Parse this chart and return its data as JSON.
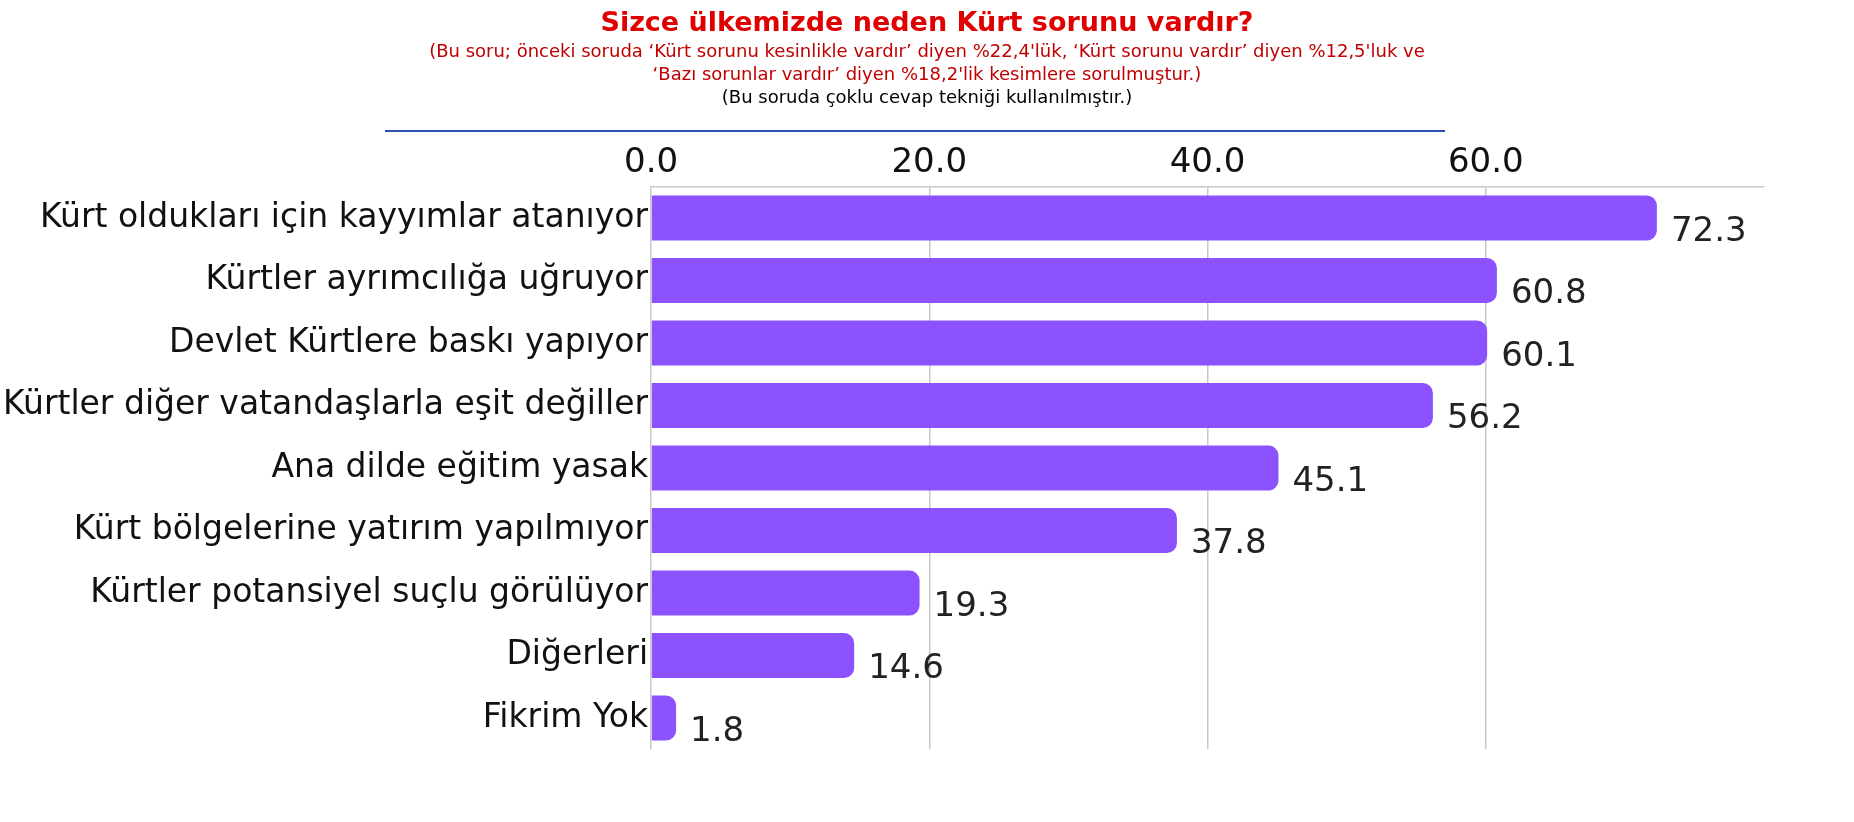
{
  "chart_data": {
    "type": "bar",
    "orientation": "horizontal",
    "title": "Sizce ülkemizde neden Kürt sorunu vardır?",
    "subtitle": "(Bu soru; önceki soruda ‘Kürt sorunu kesinlikle vardır’ diyen %22,4'lük, ‘Kürt sorunu vardır’ diyen %12,5'luk ve ‘Bazı  sorunlar vardır’ diyen %18,2'lik kesimlere sorulmuştur.)",
    "annotations": [
      "(Bu soruda çoklu cevap tekniği kullanılmıştır.)"
    ],
    "categories": [
      "Kürt oldukları için kayyımlar atanıyor",
      "Kürtler ayrımcılığa uğruyor",
      "Devlet Kürtlere baskı yapıyor",
      "Kürtler diğer vatandaşlarla eşit değiller",
      "Ana dilde eğitim yasak",
      "Kürt bölgelerine yatırım yapılmıyor",
      "Kürtler potansiyel suçlu görülüyor",
      "Diğerleri",
      "Fikrim Yok"
    ],
    "values": [
      72.3,
      60.8,
      60.1,
      56.2,
      45.1,
      37.8,
      19.3,
      14.6,
      1.8
    ],
    "color": "#8c52ff",
    "xlim": [
      0,
      80
    ],
    "xticks": [
      {
        "value": 0,
        "label": "0.0"
      },
      {
        "value": 20,
        "label": "20.0"
      },
      {
        "value": 40,
        "label": "40.0"
      },
      {
        "value": 60,
        "label": "60.0"
      }
    ],
    "grid": "x",
    "data_labels": true,
    "legend": false
  }
}
